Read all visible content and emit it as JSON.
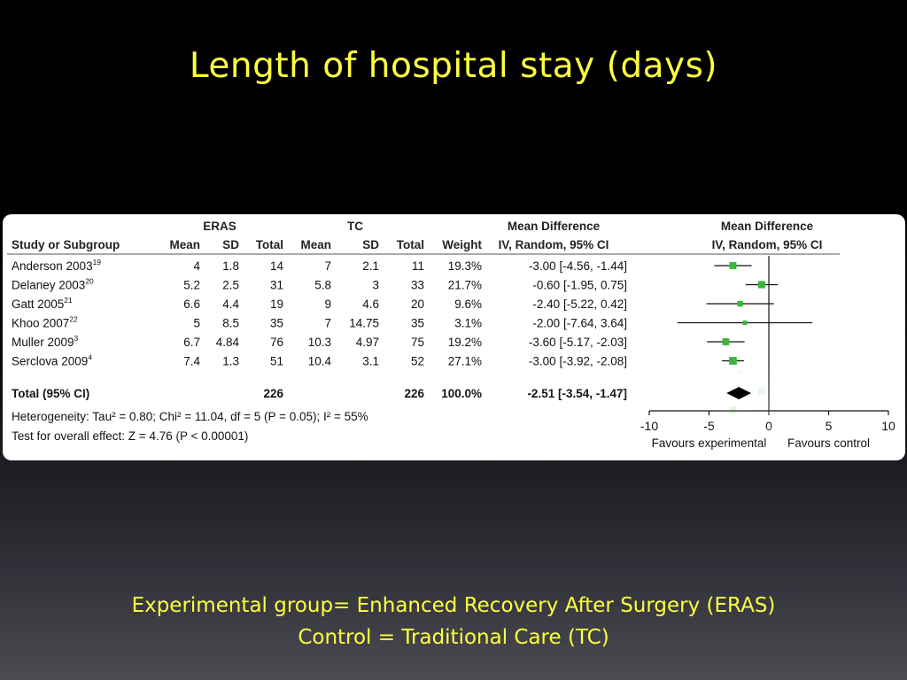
{
  "slide": {
    "title": "Length of hospital stay (days)",
    "caption_line1": "Experimental group= Enhanced Recovery After Surgery (ERAS)",
    "caption_line2": "Control = Traditional Care (TC)"
  },
  "chart_data": {
    "type": "forest",
    "header": {
      "group1": "ERAS",
      "group2": "TC",
      "effect_title": "Mean Difference",
      "effect_subtitle": "IV, Random, 95% CI",
      "plot_title": "Mean Difference",
      "plot_subtitle": "IV, Random, 95% CI",
      "columns": [
        "Study or Subgroup",
        "Mean",
        "SD",
        "Total",
        "Mean",
        "SD",
        "Total",
        "Weight"
      ]
    },
    "studies": [
      {
        "name": "Anderson 2003",
        "ref": "19",
        "eras_mean": "4",
        "eras_sd": "1.8",
        "eras_total": "14",
        "tc_mean": "7",
        "tc_sd": "2.1",
        "tc_total": "11",
        "weight": "19.3%",
        "ci_text": "-3.00 [-4.56, -1.44]",
        "md": -3.0,
        "lo": -4.56,
        "hi": -1.44,
        "w": 19.3
      },
      {
        "name": "Delaney 2003",
        "ref": "20",
        "eras_mean": "5.2",
        "eras_sd": "2.5",
        "eras_total": "31",
        "tc_mean": "5.8",
        "tc_sd": "3",
        "tc_total": "33",
        "weight": "21.7%",
        "ci_text": "-0.60 [-1.95, 0.75]",
        "md": -0.6,
        "lo": -1.95,
        "hi": 0.75,
        "w": 21.7
      },
      {
        "name": "Gatt 2005",
        "ref": "21",
        "eras_mean": "6.6",
        "eras_sd": "4.4",
        "eras_total": "19",
        "tc_mean": "9",
        "tc_sd": "4.6",
        "tc_total": "20",
        "weight": "9.6%",
        "ci_text": "-2.40 [-5.22, 0.42]",
        "md": -2.4,
        "lo": -5.22,
        "hi": 0.42,
        "w": 9.6
      },
      {
        "name": "Khoo 2007",
        "ref": "22",
        "eras_mean": "5",
        "eras_sd": "8.5",
        "eras_total": "35",
        "tc_mean": "7",
        "tc_sd": "14.75",
        "tc_total": "35",
        "weight": "3.1%",
        "ci_text": "-2.00 [-7.64, 3.64]",
        "md": -2.0,
        "lo": -7.64,
        "hi": 3.64,
        "w": 3.1
      },
      {
        "name": "Muller 2009",
        "ref": "3",
        "eras_mean": "6.7",
        "eras_sd": "4.84",
        "eras_total": "76",
        "tc_mean": "10.3",
        "tc_sd": "4.97",
        "tc_total": "75",
        "weight": "19.2%",
        "ci_text": "-3.60 [-5.17, -2.03]",
        "md": -3.6,
        "lo": -5.17,
        "hi": -2.03,
        "w": 19.2
      },
      {
        "name": "Serclova 2009",
        "ref": "4",
        "eras_mean": "7.4",
        "eras_sd": "1.3",
        "eras_total": "51",
        "tc_mean": "10.4",
        "tc_sd": "3.1",
        "tc_total": "52",
        "weight": "27.1%",
        "ci_text": "-3.00 [-3.92, -2.08]",
        "md": -3.0,
        "lo": -3.92,
        "hi": -2.08,
        "w": 27.1
      }
    ],
    "total": {
      "label": "Total (95% CI)",
      "eras_total": "226",
      "tc_total": "226",
      "weight": "100.0%",
      "ci_text": "-2.51 [-3.54, -1.47]",
      "md": -2.51,
      "lo": -3.54,
      "hi": -1.47
    },
    "heterogeneity": "Heterogeneity: Tau² = 0.80; Chi² = 11.04, df = 5 (P = 0.05); I² = 55%",
    "overall_effect": "Test for overall effect: Z = 4.76 (P < 0.00001)",
    "x_ticks": [
      -10,
      -5,
      0,
      5,
      10
    ],
    "xlim": [
      -10,
      10
    ],
    "favours_left": "Favours experimental",
    "favours_right": "Favours control",
    "marker_color": "#3cb53c"
  }
}
